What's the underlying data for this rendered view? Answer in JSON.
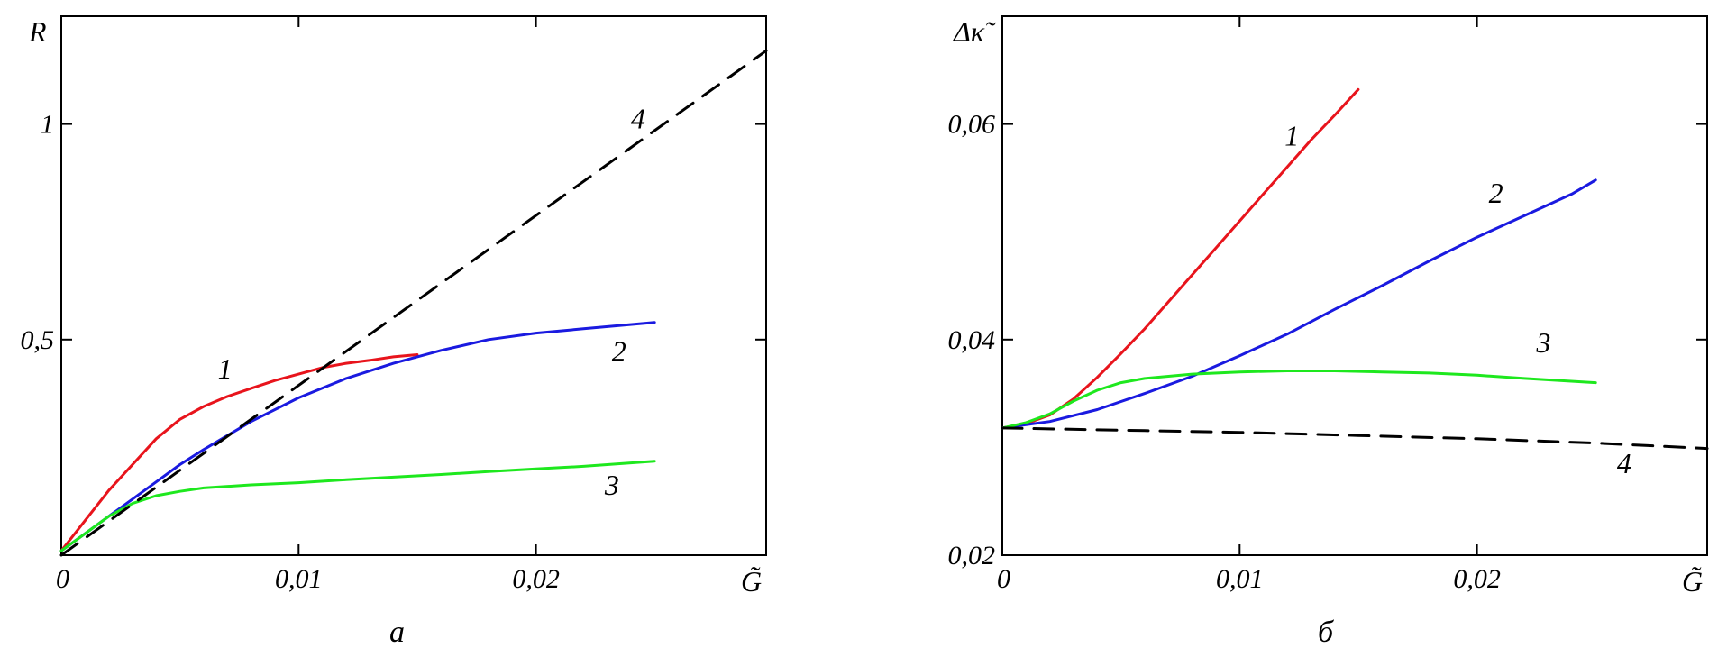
{
  "chart_data": [
    {
      "type": "line",
      "panel_label": "a",
      "ylabel": "R",
      "xlabel": "G̃",
      "xlim": [
        0,
        0.0297
      ],
      "ylim": [
        0,
        1.25
      ],
      "grid": false,
      "xticks": [
        {
          "value": 0,
          "label": "0"
        },
        {
          "value": 0.01,
          "label": "0,01"
        },
        {
          "value": 0.02,
          "label": "0,02"
        }
      ],
      "yticks": [
        {
          "value": 0.5,
          "label": "0,5"
        },
        {
          "value": 1.0,
          "label": "1"
        }
      ],
      "series": [
        {
          "name": "1",
          "color": "#e8141c",
          "dash": false,
          "x": [
            0,
            0.001,
            0.002,
            0.003,
            0.004,
            0.005,
            0.006,
            0.007,
            0.008,
            0.009,
            0.01,
            0.011,
            0.012,
            0.013,
            0.014,
            0.015
          ],
          "y": [
            0.01,
            0.08,
            0.15,
            0.21,
            0.27,
            0.315,
            0.345,
            0.368,
            0.387,
            0.405,
            0.42,
            0.435,
            0.445,
            0.452,
            0.46,
            0.465
          ]
        },
        {
          "name": "2",
          "color": "#1a1ae0",
          "dash": false,
          "x": [
            0,
            0.001,
            0.002,
            0.003,
            0.004,
            0.005,
            0.006,
            0.008,
            0.01,
            0.012,
            0.014,
            0.016,
            0.018,
            0.02,
            0.022,
            0.025
          ],
          "y": [
            0.01,
            0.05,
            0.09,
            0.13,
            0.17,
            0.21,
            0.245,
            0.31,
            0.365,
            0.41,
            0.445,
            0.475,
            0.5,
            0.515,
            0.525,
            0.54
          ]
        },
        {
          "name": "3",
          "color": "#1ee81e",
          "dash": false,
          "x": [
            0,
            0.001,
            0.002,
            0.003,
            0.004,
            0.005,
            0.006,
            0.008,
            0.01,
            0.012,
            0.014,
            0.016,
            0.018,
            0.02,
            0.022,
            0.025
          ],
          "y": [
            0.01,
            0.05,
            0.09,
            0.12,
            0.138,
            0.148,
            0.156,
            0.163,
            0.168,
            0.175,
            0.181,
            0.187,
            0.194,
            0.2,
            0.206,
            0.218
          ]
        },
        {
          "name": "4",
          "color": "#000000",
          "dash": true,
          "x": [
            0,
            0.0297
          ],
          "y": [
            0.0,
            1.17
          ]
        }
      ],
      "curve_labels": [
        {
          "text": "1",
          "x": 0.0069,
          "y": 0.41
        },
        {
          "text": "2",
          "x": 0.0235,
          "y": 0.45
        },
        {
          "text": "3",
          "x": 0.0232,
          "y": 0.14
        },
        {
          "text": "4",
          "x": 0.0243,
          "y": 0.99
        }
      ]
    },
    {
      "type": "line",
      "panel_label": "б",
      "ylabel": "Δκ̃",
      "xlabel": "G̃",
      "xlim": [
        0,
        0.0297
      ],
      "ylim": [
        0.02,
        0.07
      ],
      "grid": false,
      "xticks": [
        {
          "value": 0,
          "label": "0"
        },
        {
          "value": 0.01,
          "label": "0,01"
        },
        {
          "value": 0.02,
          "label": "0,02"
        }
      ],
      "yticks": [
        {
          "value": 0.02,
          "label": "0,02"
        },
        {
          "value": 0.04,
          "label": "0,04"
        },
        {
          "value": 0.06,
          "label": "0,06"
        }
      ],
      "series": [
        {
          "name": "1",
          "color": "#e8141c",
          "dash": false,
          "x": [
            0,
            0.001,
            0.002,
            0.003,
            0.004,
            0.005,
            0.006,
            0.007,
            0.008,
            0.009,
            0.01,
            0.011,
            0.012,
            0.013,
            0.014,
            0.015
          ],
          "y": [
            0.0318,
            0.0322,
            0.033,
            0.0345,
            0.0365,
            0.0387,
            0.041,
            0.0435,
            0.046,
            0.0485,
            0.051,
            0.0535,
            0.056,
            0.0585,
            0.0608,
            0.0632
          ]
        },
        {
          "name": "2",
          "color": "#1a1ae0",
          "dash": false,
          "x": [
            0,
            0.002,
            0.004,
            0.006,
            0.008,
            0.01,
            0.012,
            0.014,
            0.016,
            0.018,
            0.02,
            0.022,
            0.024,
            0.025
          ],
          "y": [
            0.0318,
            0.0324,
            0.0335,
            0.035,
            0.0366,
            0.0385,
            0.0405,
            0.0428,
            0.045,
            0.0473,
            0.0495,
            0.0515,
            0.0535,
            0.0548
          ]
        },
        {
          "name": "3",
          "color": "#1ee81e",
          "dash": false,
          "x": [
            0,
            0.001,
            0.002,
            0.003,
            0.004,
            0.005,
            0.006,
            0.008,
            0.01,
            0.012,
            0.014,
            0.016,
            0.018,
            0.02,
            0.022,
            0.025
          ],
          "y": [
            0.0318,
            0.0323,
            0.0331,
            0.0343,
            0.0353,
            0.036,
            0.0364,
            0.0368,
            0.037,
            0.0371,
            0.0371,
            0.037,
            0.0369,
            0.0367,
            0.0364,
            0.036
          ]
        },
        {
          "name": "4",
          "color": "#000000",
          "dash": true,
          "x": [
            0,
            0.005,
            0.01,
            0.015,
            0.02,
            0.025,
            0.0297
          ],
          "y": [
            0.0318,
            0.0316,
            0.0314,
            0.0311,
            0.0308,
            0.0304,
            0.0299
          ]
        }
      ],
      "curve_labels": [
        {
          "text": "1",
          "x": 0.0122,
          "y": 0.058
        },
        {
          "text": "2",
          "x": 0.0208,
          "y": 0.0527
        },
        {
          "text": "3",
          "x": 0.0228,
          "y": 0.0388
        },
        {
          "text": "4",
          "x": 0.0262,
          "y": 0.0276
        }
      ]
    }
  ]
}
